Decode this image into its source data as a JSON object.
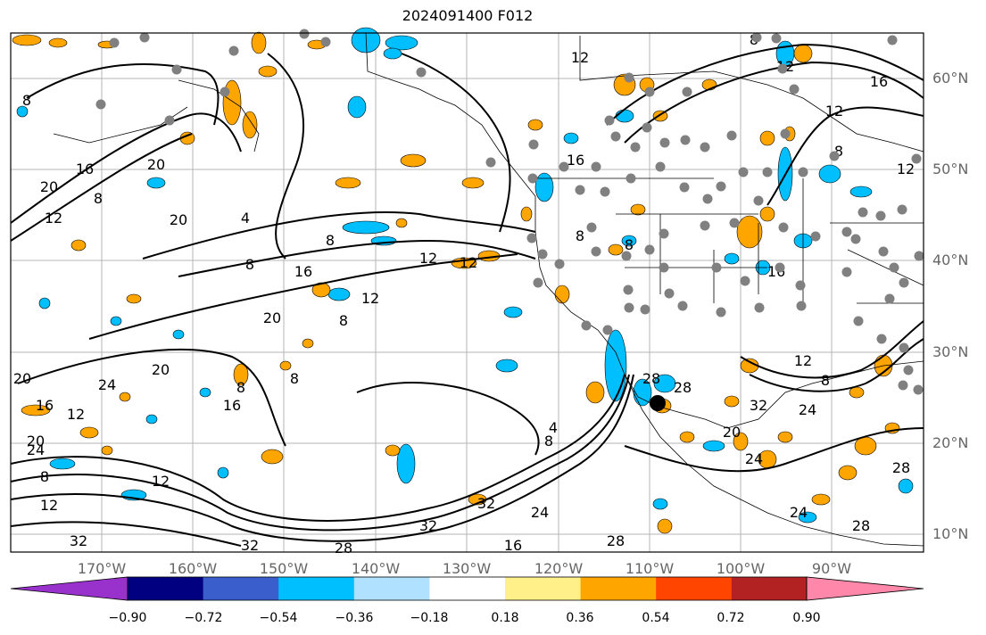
{
  "title": "2024091400 F012",
  "lat_labels": [
    "60°N",
    "50°N",
    "40°N",
    "30°N",
    "20°N",
    "10°N"
  ],
  "lon_labels": [
    "170°W",
    "160°W",
    "150°W",
    "140°W",
    "130°W",
    "120°W",
    "110°W",
    "100°W",
    "90°W"
  ],
  "colorbar": {
    "colors": [
      "#9932cc",
      "#000080",
      "#3a5fcd",
      "#00bfff",
      "#b0e2ff",
      "#ffffff",
      "#fff08a",
      "#ffa500",
      "#ff4500",
      "#b22222",
      "#ff88aa"
    ],
    "labels": [
      "−0.90",
      "−0.72",
      "−0.54",
      "−0.36",
      "−0.18",
      "0.18",
      "0.36",
      "0.54",
      "0.72",
      "0.90"
    ]
  },
  "contour_labels": [
    "8",
    "12",
    "16",
    "20",
    "4",
    "24",
    "28",
    "32"
  ],
  "colors": {
    "positive_fill": "#ffa500",
    "negative_fill": "#00bfff",
    "contour": "#000000",
    "station_dot": "#808080",
    "grid": "#b4b4b4",
    "label": "#666666"
  }
}
